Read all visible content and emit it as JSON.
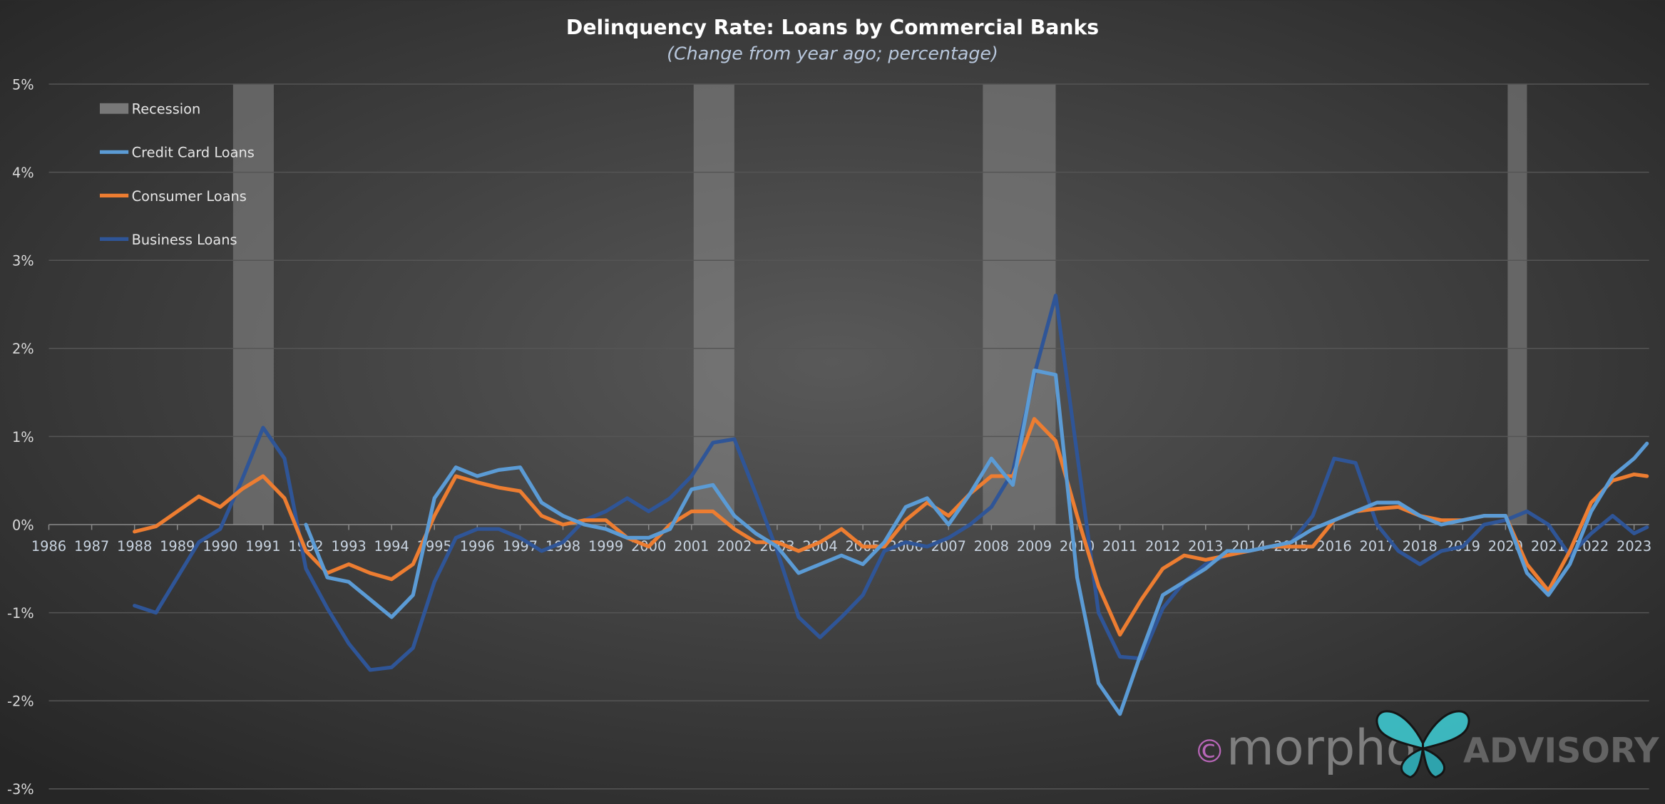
{
  "chart_data": {
    "type": "line",
    "title": "Delinquency Rate: Loans by Commercial Banks",
    "subtitle": "(Change from year ago; percentage)",
    "xlim": [
      1986,
      2023.35
    ],
    "xticks": [
      1986,
      1987,
      1988,
      1989,
      1990,
      1991,
      1992,
      1993,
      1994,
      1995,
      1996,
      1997,
      1998,
      1999,
      2000,
      2001,
      2002,
      2003,
      2004,
      2005,
      2006,
      2007,
      2008,
      2009,
      2010,
      2011,
      2012,
      2013,
      2014,
      2015,
      2016,
      2017,
      2018,
      2019,
      2020,
      2021,
      2022,
      2023
    ],
    "ylim": [
      -3,
      5
    ],
    "yticks": [
      {
        "value": -3,
        "label": "-3%"
      },
      {
        "value": -2,
        "label": "-2%"
      },
      {
        "value": -1,
        "label": "-1%"
      },
      {
        "value": 0,
        "label": "0%"
      },
      {
        "value": 1,
        "label": "1%"
      },
      {
        "value": 2,
        "label": "2%"
      },
      {
        "value": 3,
        "label": "3%"
      },
      {
        "value": 4,
        "label": "4%"
      },
      {
        "value": 5,
        "label": "5%"
      }
    ],
    "grid": true,
    "legend": "top-left",
    "recession_label": "Recession",
    "recession_color": "#8a8a8a",
    "recessions": [
      [
        1990.3,
        1991.25
      ],
      [
        2001.05,
        2002.0
      ],
      [
        2007.8,
        2009.5
      ],
      [
        2020.05,
        2020.5
      ]
    ],
    "x": [
      1988,
      1988.5,
      1989,
      1989.5,
      1990,
      1990.5,
      1991,
      1991.5,
      1992,
      1992.5,
      1993,
      1993.5,
      1994,
      1994.5,
      1995,
      1995.5,
      1996,
      1996.5,
      1997,
      1997.5,
      1998,
      1998.5,
      1999,
      1999.5,
      2000,
      2000.5,
      2001,
      2001.5,
      2002,
      2002.5,
      2003,
      2003.5,
      2004,
      2004.5,
      2005,
      2005.5,
      2006,
      2006.5,
      2007,
      2007.5,
      2008,
      2008.5,
      2009,
      2009.5,
      2010,
      2010.5,
      2011,
      2011.5,
      2012,
      2012.5,
      2013,
      2013.5,
      2014,
      2014.5,
      2015,
      2015.5,
      2016,
      2016.5,
      2017,
      2017.5,
      2018,
      2018.5,
      2019,
      2019.5,
      2020,
      2020.5,
      2021,
      2021.5,
      2022,
      2022.5,
      2023,
      2023.3
    ],
    "series": [
      {
        "name": "Credit Card Loans",
        "color": "#5b9bd5",
        "values": [
          null,
          null,
          null,
          null,
          null,
          null,
          null,
          null,
          0.0,
          -0.6,
          -0.65,
          -0.85,
          -1.05,
          -0.8,
          0.3,
          0.65,
          0.55,
          0.62,
          0.65,
          0.25,
          0.1,
          0.0,
          -0.05,
          -0.15,
          -0.15,
          -0.05,
          0.4,
          0.45,
          0.1,
          -0.1,
          -0.25,
          -0.55,
          -0.45,
          -0.35,
          -0.45,
          -0.2,
          0.2,
          0.3,
          0.0,
          0.35,
          0.75,
          0.45,
          1.75,
          1.7,
          -0.6,
          -1.8,
          -2.15,
          -1.45,
          -0.8,
          -0.65,
          -0.5,
          -0.3,
          -0.3,
          -0.25,
          -0.2,
          -0.05,
          0.05,
          0.15,
          0.25,
          0.25,
          0.1,
          0.0,
          0.05,
          0.1,
          0.1,
          -0.55,
          -0.8,
          -0.45,
          0.15,
          0.55,
          0.75,
          0.92
        ]
      },
      {
        "name": "Consumer Loans",
        "color": "#ed7d31",
        "values": [
          -0.08,
          -0.02,
          0.15,
          0.32,
          0.2,
          0.4,
          0.55,
          0.3,
          -0.3,
          -0.55,
          -0.45,
          -0.55,
          -0.62,
          -0.45,
          0.1,
          0.55,
          0.48,
          0.42,
          0.38,
          0.1,
          0.0,
          0.05,
          0.05,
          -0.15,
          -0.25,
          0.0,
          0.15,
          0.15,
          -0.05,
          -0.2,
          -0.2,
          -0.3,
          -0.2,
          -0.05,
          -0.25,
          -0.25,
          0.05,
          0.25,
          0.1,
          0.35,
          0.55,
          0.55,
          1.2,
          0.95,
          0.1,
          -0.7,
          -1.25,
          -0.85,
          -0.5,
          -0.35,
          -0.4,
          -0.35,
          -0.3,
          -0.25,
          -0.25,
          -0.25,
          0.05,
          0.15,
          0.18,
          0.2,
          0.1,
          0.05,
          0.05,
          0.1,
          0.1,
          -0.45,
          -0.75,
          -0.3,
          0.25,
          0.5,
          0.57,
          0.55
        ]
      },
      {
        "name": "Business Loans",
        "color": "#2f5597",
        "values": [
          -0.92,
          -1.0,
          -0.6,
          -0.2,
          -0.05,
          0.5,
          1.1,
          0.75,
          -0.5,
          -0.95,
          -1.35,
          -1.65,
          -1.62,
          -1.4,
          -0.65,
          -0.15,
          -0.05,
          -0.05,
          -0.15,
          -0.3,
          -0.2,
          0.05,
          0.15,
          0.3,
          0.15,
          0.3,
          0.55,
          0.93,
          0.97,
          0.35,
          -0.3,
          -1.05,
          -1.28,
          -1.05,
          -0.8,
          -0.3,
          -0.2,
          -0.25,
          -0.15,
          0.0,
          0.2,
          0.6,
          1.7,
          2.6,
          0.8,
          -1.0,
          -1.5,
          -1.52,
          -0.95,
          -0.65,
          -0.45,
          -0.35,
          -0.3,
          -0.25,
          -0.2,
          0.1,
          0.75,
          0.7,
          0.0,
          -0.3,
          -0.45,
          -0.3,
          -0.25,
          0.0,
          0.05,
          0.15,
          0.0,
          -0.35,
          -0.1,
          0.1,
          -0.1,
          -0.03
        ]
      }
    ],
    "watermark": [
      "©",
      "morpho",
      "ADVISORY"
    ]
  }
}
